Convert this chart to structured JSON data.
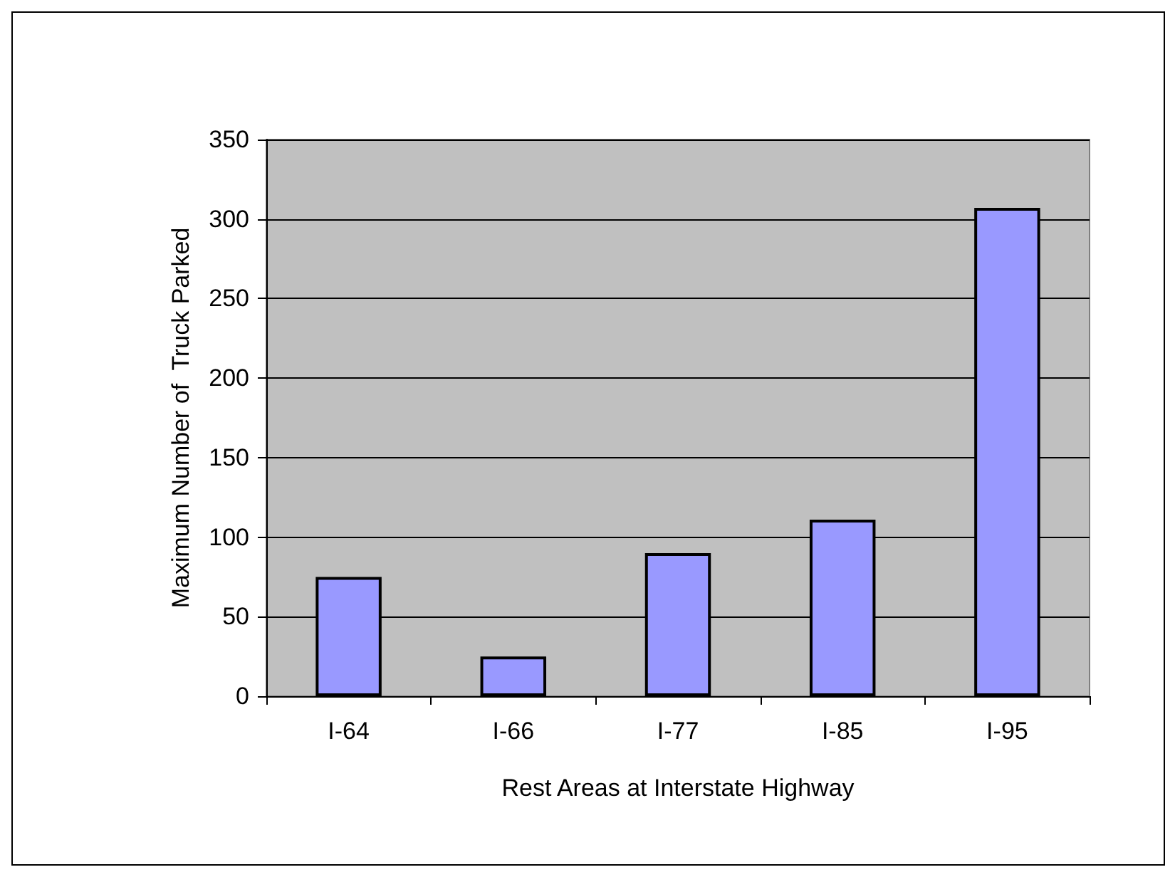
{
  "chart_data": {
    "type": "bar",
    "xlabel": "Rest Areas at Interstate Highway",
    "ylabel": "Maximum Number of  Truck Parked",
    "categories": [
      "I-64",
      "I-66",
      "I-77",
      "I-85",
      "I-95"
    ],
    "values": [
      75,
      25,
      90,
      111,
      307
    ],
    "color": "#9999ff",
    "ylim": [
      0,
      350
    ],
    "yticks": [
      0,
      50,
      100,
      150,
      200,
      250,
      300,
      350
    ],
    "grid": "y"
  }
}
